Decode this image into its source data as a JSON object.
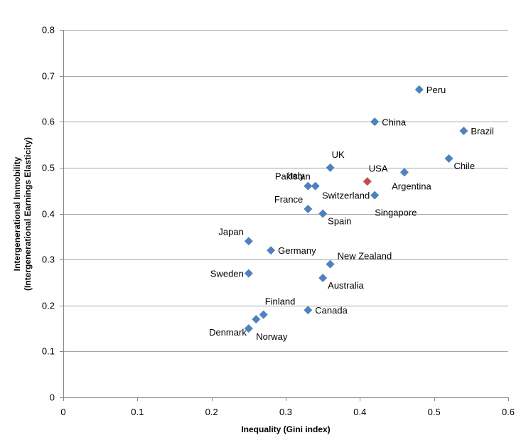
{
  "chart_data": {
    "type": "scatter",
    "xlabel": "Inequality (Gini index)",
    "ylabel_line1": "Intergenerational Immobility",
    "ylabel_line2": "(Intergenerational Earnings Elasticity)",
    "xlim": [
      0,
      0.6
    ],
    "ylim": [
      0,
      0.8
    ],
    "x_ticks": [
      "0",
      "0.1",
      "0.2",
      "0.3",
      "0.4",
      "0.5",
      "0.6"
    ],
    "y_ticks": [
      "0",
      "0.1",
      "0.2",
      "0.3",
      "0.4",
      "0.5",
      "0.6",
      "0.7",
      "0.8"
    ],
    "grid": "horizontal",
    "colors": {
      "default": "#4f81bd",
      "highlight": "#c0504d"
    },
    "points": [
      {
        "label": "Peru",
        "x": 0.48,
        "y": 0.67,
        "label_side": "right"
      },
      {
        "label": "China",
        "x": 0.42,
        "y": 0.6,
        "label_side": "right"
      },
      {
        "label": "Brazil",
        "x": 0.54,
        "y": 0.58,
        "label_side": "right"
      },
      {
        "label": "Chile",
        "x": 0.52,
        "y": 0.52,
        "label_side": "right-below"
      },
      {
        "label": "Italy",
        "x": 0.33,
        "y": 0.46,
        "label_side": "above-left"
      },
      {
        "label": "UK",
        "x": 0.36,
        "y": 0.5,
        "label_side": "above-right"
      },
      {
        "label": "USA",
        "x": 0.41,
        "y": 0.47,
        "label_side": "above-right",
        "highlight": true
      },
      {
        "label": "Argentina",
        "x": 0.46,
        "y": 0.49,
        "label_side": "below"
      },
      {
        "label": "Pakistan",
        "x": 0.34,
        "y": 0.46,
        "label_side": "left-above"
      },
      {
        "label": "Switzerland",
        "x": 0.42,
        "y": 0.44,
        "label_side": "left"
      },
      {
        "label": "Singapore",
        "x": 0.42,
        "y": 0.44,
        "label_side": "below-right",
        "no_marker": true
      },
      {
        "label": "France",
        "x": 0.33,
        "y": 0.41,
        "label_side": "left-above"
      },
      {
        "label": "Spain",
        "x": 0.35,
        "y": 0.4,
        "label_side": "right-below"
      },
      {
        "label": "Japan",
        "x": 0.25,
        "y": 0.34,
        "label_side": "left-above"
      },
      {
        "label": "Germany",
        "x": 0.28,
        "y": 0.32,
        "label_side": "right"
      },
      {
        "label": "New Zealand",
        "x": 0.36,
        "y": 0.29,
        "label_side": "right-above"
      },
      {
        "label": "Sweden",
        "x": 0.25,
        "y": 0.27,
        "label_side": "left"
      },
      {
        "label": "Australia",
        "x": 0.35,
        "y": 0.26,
        "label_side": "right-below"
      },
      {
        "label": "Finland",
        "x": 0.27,
        "y": 0.18,
        "label_side": "above-right"
      },
      {
        "label": "Canada",
        "x": 0.33,
        "y": 0.19,
        "label_side": "right"
      },
      {
        "label": "Norway",
        "x": 0.26,
        "y": 0.17,
        "label_side": "below-right"
      },
      {
        "label": "Denmark",
        "x": 0.25,
        "y": 0.15,
        "label_side": "left-below"
      }
    ]
  }
}
